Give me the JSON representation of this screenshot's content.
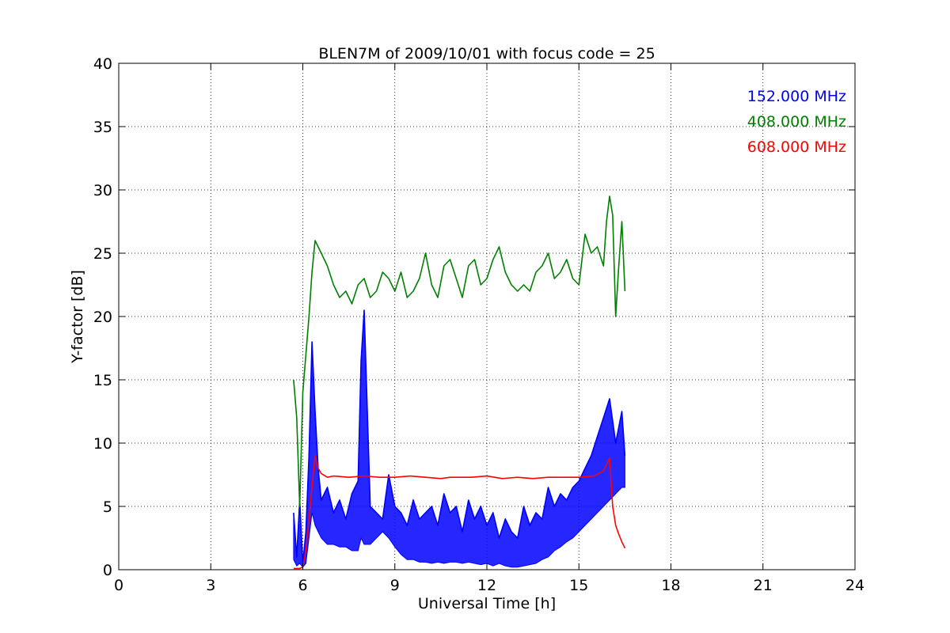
{
  "chart_data": {
    "type": "line",
    "title": "BLEN7M of 2009/10/01 with focus code = 25",
    "xlabel": "Universal Time [h]",
    "ylabel": "Y-factor [dB]",
    "xlim": [
      0,
      24
    ],
    "ylim": [
      0,
      40
    ],
    "xticks": [
      0,
      3,
      6,
      9,
      12,
      15,
      18,
      21,
      24
    ],
    "yticks": [
      0,
      5,
      10,
      15,
      20,
      25,
      30,
      35,
      40
    ],
    "grid": true,
    "legend_position": "top-right",
    "series": [
      {
        "name": "152.000 MHz",
        "color": "#0000ff",
        "x": [
          5.7,
          5.8,
          5.9,
          6.0,
          6.1,
          6.2,
          6.3,
          6.4,
          6.5,
          6.6,
          6.8,
          7.0,
          7.2,
          7.4,
          7.6,
          7.8,
          7.9,
          8.0,
          8.2,
          8.4,
          8.6,
          8.8,
          9.0,
          9.2,
          9.4,
          9.6,
          9.8,
          10.0,
          10.2,
          10.4,
          10.6,
          10.8,
          11.0,
          11.2,
          11.4,
          11.6,
          11.8,
          12.0,
          12.2,
          12.4,
          12.6,
          12.8,
          13.0,
          13.2,
          13.4,
          13.6,
          13.8,
          14.0,
          14.2,
          14.4,
          14.6,
          14.8,
          15.0,
          15.2,
          15.4,
          15.6,
          15.8,
          16.0,
          16.2,
          16.4,
          16.5
        ],
        "y": [
          4.5,
          1.0,
          5.5,
          0.5,
          3.0,
          9.0,
          18.0,
          12.5,
          8.0,
          5.5,
          6.5,
          4.5,
          5.5,
          4.0,
          6.0,
          7.0,
          16.5,
          20.5,
          5.0,
          4.5,
          4.0,
          7.5,
          5.0,
          4.5,
          3.5,
          5.5,
          4.0,
          4.5,
          5.0,
          3.5,
          6.0,
          4.5,
          5.0,
          3.0,
          5.5,
          4.0,
          5.0,
          3.5,
          4.5,
          2.5,
          4.0,
          3.0,
          2.5,
          5.0,
          3.5,
          4.5,
          4.0,
          6.5,
          5.0,
          6.0,
          5.5,
          6.5,
          7.0,
          8.0,
          9.0,
          10.5,
          12.0,
          13.5,
          10.0,
          12.5,
          9.0
        ],
        "low": [
          0.8,
          0.3,
          0.5,
          0.2,
          0.5,
          2.5,
          4.5,
          3.5,
          3.0,
          2.5,
          2.0,
          2.0,
          1.8,
          1.8,
          1.5,
          1.5,
          2.5,
          2.0,
          2.0,
          2.5,
          3.0,
          2.5,
          1.8,
          1.2,
          0.8,
          0.8,
          0.6,
          0.6,
          0.5,
          0.6,
          0.5,
          0.6,
          0.6,
          0.5,
          0.6,
          0.5,
          0.4,
          0.5,
          0.3,
          0.5,
          0.3,
          0.2,
          0.2,
          0.3,
          0.4,
          0.5,
          0.8,
          1.0,
          1.5,
          1.8,
          2.2,
          2.5,
          3.0,
          3.5,
          4.0,
          4.5,
          5.0,
          5.5,
          6.0,
          6.5,
          6.5
        ]
      },
      {
        "name": "408.000 MHz",
        "color": "#008000",
        "x": [
          5.7,
          5.8,
          5.9,
          6.0,
          6.1,
          6.2,
          6.3,
          6.4,
          6.5,
          6.6,
          6.8,
          7.0,
          7.2,
          7.4,
          7.6,
          7.8,
          8.0,
          8.2,
          8.4,
          8.6,
          8.8,
          9.0,
          9.2,
          9.4,
          9.6,
          9.8,
          10.0,
          10.2,
          10.4,
          10.6,
          10.8,
          11.0,
          11.2,
          11.4,
          11.6,
          11.8,
          12.0,
          12.2,
          12.4,
          12.6,
          12.8,
          13.0,
          13.2,
          13.4,
          13.6,
          13.8,
          14.0,
          14.2,
          14.4,
          14.6,
          14.8,
          15.0,
          15.2,
          15.4,
          15.6,
          15.8,
          15.9,
          16.0,
          16.1,
          16.2,
          16.3,
          16.4,
          16.5
        ],
        "y": [
          15.0,
          12.0,
          5.0,
          14.0,
          17.0,
          20.0,
          23.5,
          26.0,
          25.5,
          25.0,
          24.0,
          22.5,
          21.5,
          22.0,
          21.0,
          22.5,
          23.0,
          21.5,
          22.0,
          23.5,
          23.0,
          22.0,
          23.5,
          21.5,
          22.0,
          23.0,
          25.0,
          22.5,
          21.5,
          24.0,
          24.5,
          23.0,
          21.5,
          24.0,
          24.5,
          22.5,
          23.0,
          24.5,
          25.5,
          23.5,
          22.5,
          22.0,
          22.5,
          22.0,
          23.5,
          24.0,
          25.0,
          23.0,
          23.5,
          24.5,
          23.0,
          22.5,
          26.5,
          25.0,
          25.5,
          24.0,
          27.5,
          29.5,
          28.0,
          20.0,
          24.0,
          27.5,
          22.0
        ]
      },
      {
        "name": "608.000 MHz",
        "color": "#ff0000",
        "x": [
          5.7,
          5.8,
          5.9,
          6.0,
          6.1,
          6.2,
          6.3,
          6.4,
          6.5,
          6.6,
          6.8,
          7.0,
          7.5,
          8.0,
          8.5,
          9.0,
          9.5,
          10.0,
          10.5,
          10.8,
          11.0,
          11.5,
          12.0,
          12.5,
          13.0,
          13.5,
          14.0,
          14.5,
          15.0,
          15.5,
          15.8,
          16.0,
          16.1,
          16.2,
          16.3,
          16.4,
          16.5
        ],
        "y": [
          0.1,
          0.1,
          0.1,
          0.2,
          1.5,
          4.0,
          6.5,
          9.0,
          8.0,
          7.6,
          7.3,
          7.4,
          7.3,
          7.4,
          7.3,
          7.3,
          7.4,
          7.3,
          7.2,
          7.3,
          7.3,
          7.3,
          7.4,
          7.2,
          7.3,
          7.2,
          7.3,
          7.3,
          7.3,
          7.4,
          7.8,
          8.8,
          5.0,
          3.5,
          2.8,
          2.2,
          1.7
        ]
      }
    ]
  }
}
